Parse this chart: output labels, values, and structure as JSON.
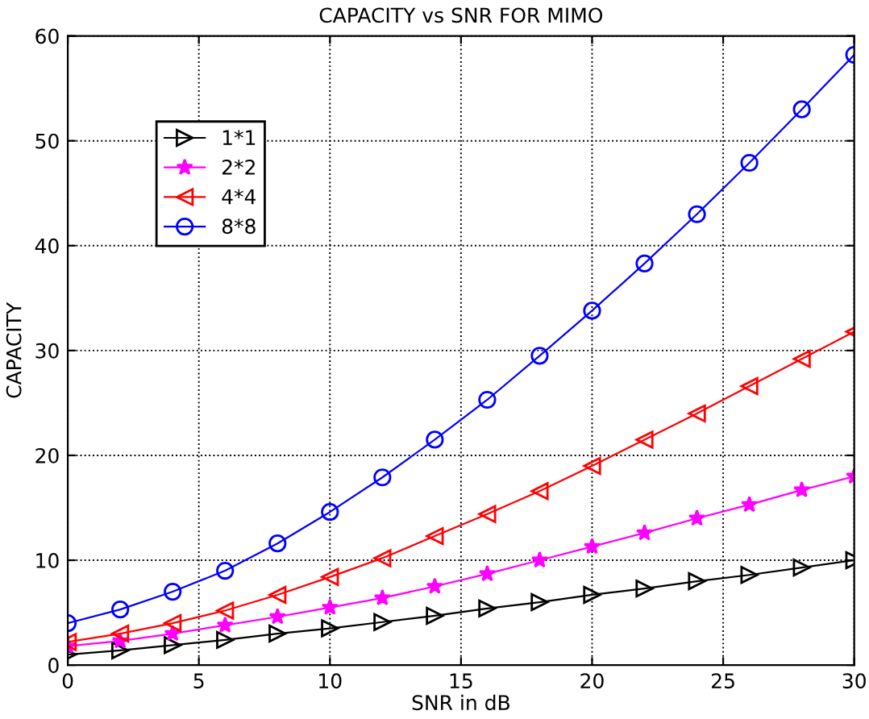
{
  "chart_data": {
    "type": "line",
    "title": "CAPACITY vs SNR FOR MIMO",
    "xlabel": "SNR in dB",
    "ylabel": "CAPACITY",
    "x": [
      0,
      2,
      4,
      6,
      8,
      10,
      12,
      14,
      16,
      18,
      20,
      22,
      24,
      26,
      28,
      30
    ],
    "xlim": [
      0,
      30
    ],
    "xticks": [
      0,
      5,
      10,
      15,
      20,
      25,
      30
    ],
    "ylim": [
      0,
      60
    ],
    "yticks": [
      0,
      10,
      20,
      30,
      40,
      50,
      60
    ],
    "grid": true,
    "legend": "top left",
    "line_style": "solid",
    "series": [
      {
        "name": "1*1",
        "color": "#000000",
        "marker": "triangle-right",
        "values": [
          1.0,
          1.4,
          1.9,
          2.4,
          3.0,
          3.5,
          4.1,
          4.7,
          5.4,
          6.0,
          6.7,
          7.3,
          8.0,
          8.6,
          9.3,
          10.0
        ]
      },
      {
        "name": "2*2",
        "color": "#ff00ff",
        "marker": "star",
        "values": [
          1.8,
          2.3,
          3.0,
          3.8,
          4.6,
          5.5,
          6.4,
          7.5,
          8.7,
          10.0,
          11.3,
          12.6,
          14.0,
          15.3,
          16.7,
          18.0
        ]
      },
      {
        "name": "4*4",
        "color": "#ff0000",
        "marker": "triangle-left",
        "values": [
          2.2,
          3.0,
          4.0,
          5.2,
          6.7,
          8.4,
          10.2,
          12.3,
          14.4,
          16.6,
          19.0,
          21.5,
          24.0,
          26.6,
          29.2,
          31.8
        ]
      },
      {
        "name": "8*8",
        "color": "#0000ff",
        "marker": "circle",
        "values": [
          4.0,
          5.3,
          7.0,
          9.0,
          11.6,
          14.6,
          17.9,
          21.5,
          25.3,
          29.5,
          33.8,
          38.3,
          43.0,
          47.9,
          53.0,
          58.2
        ]
      }
    ]
  }
}
